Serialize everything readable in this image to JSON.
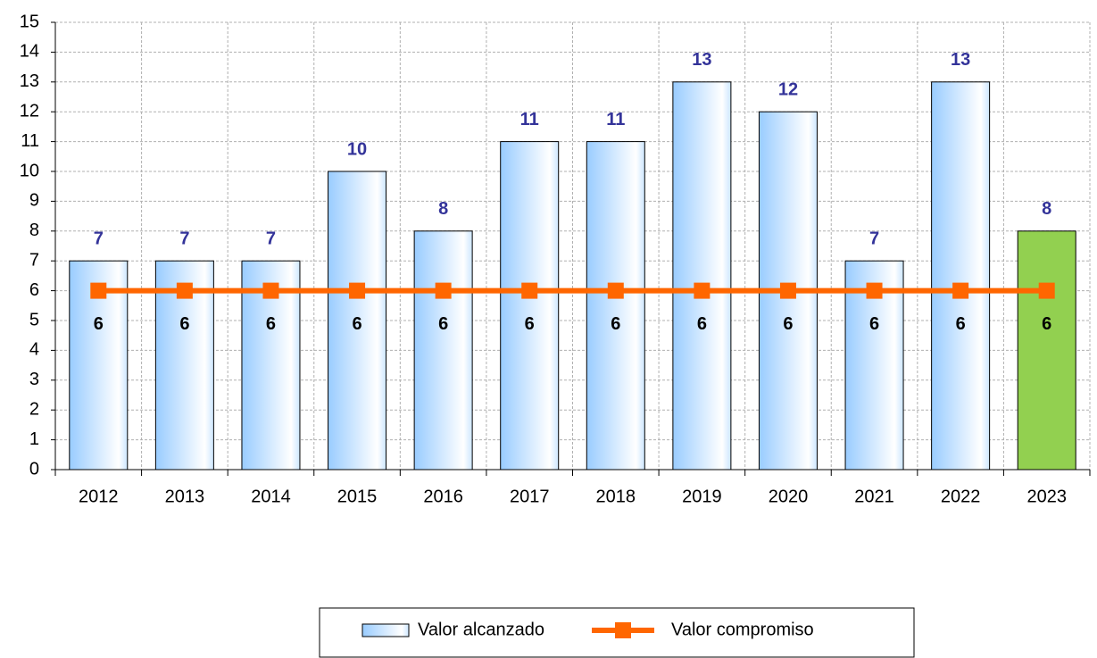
{
  "chart_data": {
    "type": "bar",
    "categories": [
      "2012",
      "2013",
      "2014",
      "2015",
      "2016",
      "2017",
      "2018",
      "2019",
      "2020",
      "2021",
      "2022",
      "2023"
    ],
    "series": [
      {
        "name": "Valor alcanzado",
        "type": "bar",
        "color": "#99ccff",
        "colors": [
          "#99ccff",
          "#99ccff",
          "#99ccff",
          "#99ccff",
          "#99ccff",
          "#99ccff",
          "#99ccff",
          "#99ccff",
          "#99ccff",
          "#99ccff",
          "#99ccff",
          "#92d050"
        ],
        "values": [
          7,
          7,
          7,
          10,
          8,
          11,
          11,
          13,
          12,
          7,
          13,
          8
        ]
      },
      {
        "name": "Valor compromiso",
        "type": "line",
        "color": "#ff6600",
        "values": [
          6,
          6,
          6,
          6,
          6,
          6,
          6,
          6,
          6,
          6,
          6,
          6
        ]
      }
    ],
    "ylim": [
      0,
      15
    ],
    "yticks": [
      0,
      1,
      2,
      3,
      4,
      5,
      6,
      7,
      8,
      9,
      10,
      11,
      12,
      13,
      14,
      15
    ],
    "grid": true,
    "legend": "bottom"
  }
}
